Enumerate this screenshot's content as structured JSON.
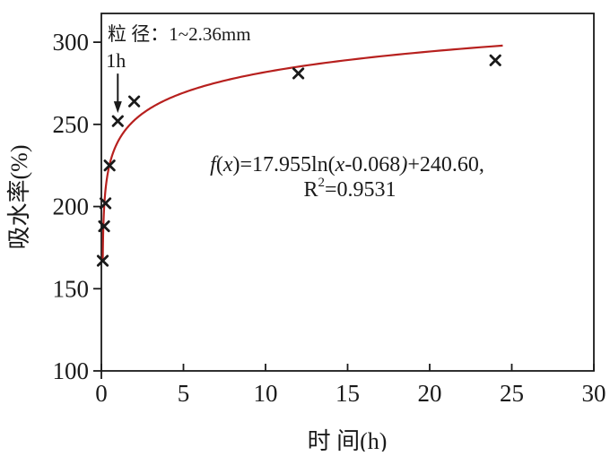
{
  "chart_data": {
    "type": "scatter",
    "title": "",
    "xlabel": "时 间(h)",
    "ylabel": "吸水率(%)",
    "xlim": [
      0,
      30
    ],
    "ylim": [
      100,
      317.5
    ],
    "xticks": [
      0,
      5,
      10,
      15,
      20,
      25,
      30
    ],
    "yticks": [
      100,
      150,
      200,
      250,
      300
    ],
    "grid": false,
    "legend_position": "none",
    "annotation_label": "粒 径：1~2.36mm",
    "series": [
      {
        "name": "measured-points",
        "marker": "x",
        "points": [
          {
            "x": 0.083,
            "y": 167
          },
          {
            "x": 0.167,
            "y": 188
          },
          {
            "x": 0.25,
            "y": 202
          },
          {
            "x": 0.5,
            "y": 225
          },
          {
            "x": 1,
            "y": 252
          },
          {
            "x": 2,
            "y": 264
          },
          {
            "x": 12,
            "y": 281
          },
          {
            "x": 24,
            "y": 289
          }
        ]
      }
    ],
    "fit_curve": {
      "model": "logarithmic",
      "a": 17.955,
      "x0": 0.068,
      "b": 240.6,
      "x_start": 0.085,
      "x_end": 24.45
    },
    "point_annotation": {
      "label": "1h",
      "points_to_x": 1
    },
    "equation_line1": [
      {
        "t": "f",
        "i": 1
      },
      {
        "t": "("
      },
      {
        "t": "x",
        "i": 1
      },
      {
        "t": ")=17.955ln("
      },
      {
        "t": "x",
        "i": 1
      },
      {
        "t": "-0.068"
      },
      {
        "t": ")",
        "i": 1
      },
      {
        "t": "+240.60,"
      }
    ],
    "equation_line2": [
      {
        "t": "R"
      },
      {
        "t": "2",
        "sup": 1
      },
      {
        "t": "=0.9531"
      }
    ],
    "colors": {
      "curve": "#b7201e",
      "annotation_text": "#b01f24",
      "ink": "#1a1a1a"
    }
  }
}
